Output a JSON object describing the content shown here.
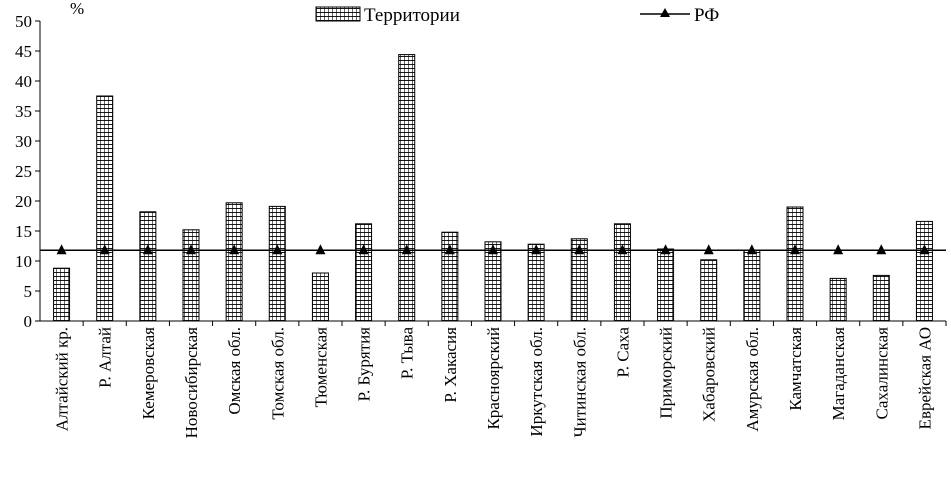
{
  "chart_data": {
    "type": "bar",
    "unit_label": "%",
    "ylim": [
      0,
      50
    ],
    "yticks": [
      0,
      5,
      10,
      15,
      20,
      25,
      30,
      35,
      40,
      45,
      50
    ],
    "categories": [
      "Алтайский кр.",
      "Р. Алтай",
      "Кемеровская",
      "Новосибирская",
      "Омская обл.",
      "Томская обл.",
      "Тюменская",
      "Р. Бурятия",
      "Р. Тыва",
      "Р. Хакасия",
      "Красноярский",
      "Иркутская обл.",
      "Читинская обл.",
      "Р. Саха",
      "Приморский",
      "Хабаровский",
      "Амурская обл.",
      "Камчатская",
      "Магаданская",
      "Сахалинская",
      "Еврейская АО"
    ],
    "series": [
      {
        "name": "Территории",
        "kind": "bar",
        "values": [
          8.8,
          37.5,
          18.2,
          15.2,
          19.7,
          19.1,
          8.0,
          16.2,
          44.4,
          14.8,
          13.2,
          12.8,
          13.7,
          16.2,
          12.0,
          10.2,
          11.8,
          19.0,
          7.1,
          7.6,
          16.6
        ]
      },
      {
        "name": "РФ",
        "kind": "line",
        "values": [
          11.8,
          11.8,
          11.8,
          11.8,
          11.8,
          11.8,
          11.8,
          11.8,
          11.8,
          11.8,
          11.8,
          11.8,
          11.8,
          11.8,
          11.8,
          11.8,
          11.8,
          11.8,
          11.8,
          11.8,
          11.8
        ]
      }
    ],
    "legend": {
      "position": "top",
      "entries": [
        "Территории",
        "РФ"
      ]
    },
    "colors": {
      "bar_fill": "#ffffff",
      "bar_stroke": "#000000",
      "line": "#000000",
      "marker": "#000000"
    }
  }
}
